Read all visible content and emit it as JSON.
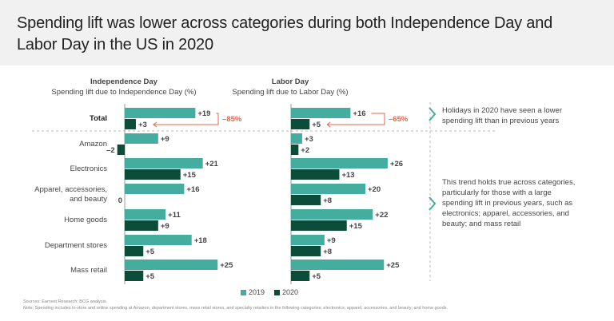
{
  "header": {
    "title": "Spending lift was lower across categories during both Independence Day and Labor Day in the US in 2020"
  },
  "colors": {
    "series_2019": "#44ada0",
    "series_2020": "#0b4d38",
    "highlight": "#e0674a",
    "callout_arrow": "#44ada0"
  },
  "panels": [
    {
      "title": "Independence Day",
      "subtitle": "Spending lift due to Independence Day (%)"
    },
    {
      "title": "Labor Day",
      "subtitle": "Spending lift due to Labor Day (%)"
    }
  ],
  "chart_data": {
    "type": "bar",
    "orientation": "horizontal",
    "categories": [
      "Total",
      "Amazon",
      "Electronics",
      "Apparel, accessories, and beauty",
      "Home goods",
      "Department stores",
      "Mass retail"
    ],
    "category_labels": [
      [
        "Total"
      ],
      [
        "Amazon"
      ],
      [
        "Electronics"
      ],
      [
        "Apparel, accessories,",
        "and beauty"
      ],
      [
        "Home goods"
      ],
      [
        "Department stores"
      ],
      [
        "Mass retail"
      ]
    ],
    "panels": [
      {
        "title": "Independence Day",
        "xlabel": "Spending lift due to Independence Day (%)",
        "series": [
          {
            "name": "2019",
            "values": [
              19,
              9,
              21,
              16,
              11,
              18,
              25
            ],
            "labels": [
              "+19",
              "+9",
              "+21",
              "+16",
              "+11",
              "+18",
              "+25"
            ]
          },
          {
            "name": "2020",
            "values": [
              3,
              -2,
              15,
              0,
              9,
              5,
              5
            ],
            "labels": [
              "+3",
              "–2",
              "+15",
              "0",
              "+9",
              "+5",
              "+5"
            ]
          }
        ],
        "total_change_annotation": "–85%"
      },
      {
        "title": "Labor Day",
        "xlabel": "Spending lift due to Labor Day (%)",
        "series": [
          {
            "name": "2019",
            "values": [
              16,
              3,
              26,
              20,
              22,
              9,
              25
            ],
            "labels": [
              "+16",
              "+3",
              "+26",
              "+20",
              "+22",
              "+9",
              "+25"
            ]
          },
          {
            "name": "2020",
            "values": [
              5,
              2,
              13,
              8,
              15,
              8,
              5
            ],
            "labels": [
              "+5",
              "+2",
              "+13",
              "+8",
              "+15",
              "+8",
              "+5"
            ]
          }
        ],
        "total_change_annotation": "–65%"
      }
    ],
    "legend": [
      "2019",
      "2020"
    ],
    "legend_position": "bottom-center",
    "grid": false
  },
  "callouts": [
    {
      "text": "Holidays in 2020 have seen a lower spending lift than in previous years"
    },
    {
      "text": "This trend holds true across categories, particularly for those with a large spending lift in previous years, such as electronics; apparel, accessories, and beauty; and mass retail"
    }
  ],
  "legend": {
    "items": [
      "2019",
      "2020"
    ]
  },
  "footer": {
    "sources": "Sources: Earnest Research; BCG analysis.",
    "note": "Note: Spending includes in-store and online spending at Amazon, department stores, mass retail stores, and specialty retailers in the following categories: electronics; apparel, accessories, and beauty; and home goods."
  }
}
